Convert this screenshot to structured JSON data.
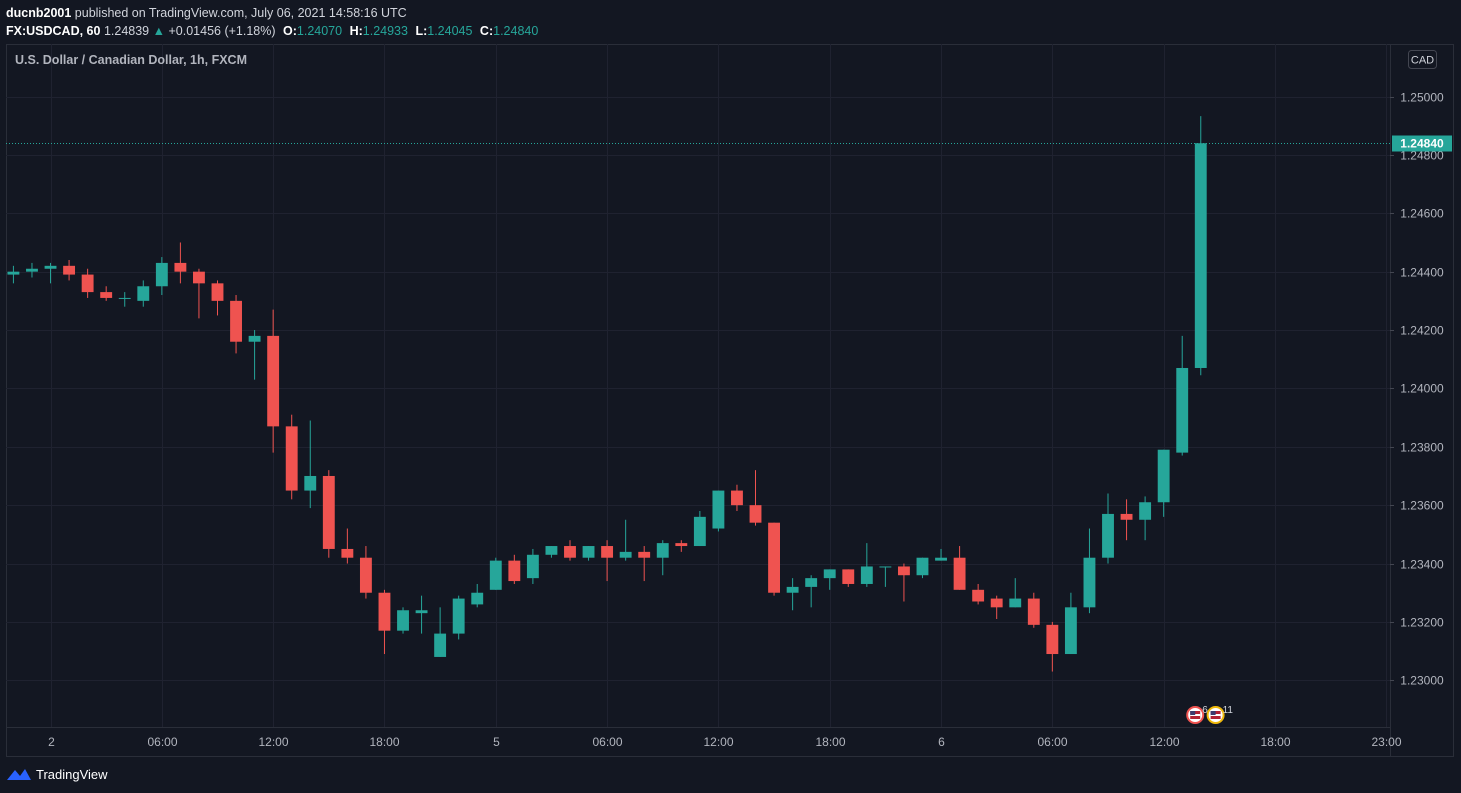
{
  "header": {
    "author": "ducnb2001",
    "published_text": " published on TradingView.com, July 06, 2021 14:58:16 UTC",
    "symbol": "FX:USDCAD, 60",
    "last": "1.24839",
    "arrow": "▲",
    "change": "+0.01456 (+1.18%)",
    "o_label": "O:",
    "o": "1.24070",
    "h_label": "H:",
    "h": "1.24933",
    "l_label": "L:",
    "l": "1.24045",
    "c_label": "C:",
    "c": "1.24840"
  },
  "footer": {
    "brand": "TradingView",
    "logo": "tradingview-logo-icon"
  },
  "colors": {
    "background": "#131722",
    "grid": "#1f2230",
    "up": "#26a69a",
    "down": "#ef5350",
    "text": "#d1d4dc",
    "axis_text": "#b2b5be",
    "price_line": "#26a69a"
  },
  "chart_data": {
    "type": "candlestick",
    "title": "U.S. Dollar / Canadian Dollar, 1h, FXCM",
    "currency_label": "CAD",
    "ylim": [
      1.2284,
      1.2518
    ],
    "yticks": [
      "1.23000",
      "1.23200",
      "1.23400",
      "1.23600",
      "1.23800",
      "1.24000",
      "1.24200",
      "1.24400",
      "1.24600",
      "1.24800",
      "1.25000"
    ],
    "last_price": 1.2484,
    "last_price_label": "1.24840",
    "x_index_range": [
      -0.4,
      74.2
    ],
    "xticks": [
      {
        "index": 2,
        "label": "2"
      },
      {
        "index": 8,
        "label": "06:00"
      },
      {
        "index": 14,
        "label": "12:00"
      },
      {
        "index": 20,
        "label": "18:00"
      },
      {
        "index": 26,
        "label": "5"
      },
      {
        "index": 32,
        "label": "06:00"
      },
      {
        "index": 38,
        "label": "12:00"
      },
      {
        "index": 44,
        "label": "18:00"
      },
      {
        "index": 50,
        "label": "6"
      },
      {
        "index": 56,
        "label": "06:00"
      },
      {
        "index": 62,
        "label": "12:00"
      },
      {
        "index": 68,
        "label": "18:00"
      },
      {
        "index": 74,
        "label": "23:00"
      }
    ],
    "grid": true,
    "events": [
      {
        "index": 63.7,
        "icon": "us-flag-icon",
        "count": "6"
      },
      {
        "index": 64.8,
        "icon": "us-flag-icon",
        "count": "11"
      }
    ],
    "candles": [
      {
        "o": 1.2439,
        "h": 1.2442,
        "l": 1.2436,
        "c": 1.244
      },
      {
        "o": 1.244,
        "h": 1.2443,
        "l": 1.2438,
        "c": 1.2441
      },
      {
        "o": 1.2441,
        "h": 1.2443,
        "l": 1.2436,
        "c": 1.2442
      },
      {
        "o": 1.2442,
        "h": 1.2444,
        "l": 1.2437,
        "c": 1.2439
      },
      {
        "o": 1.2439,
        "h": 1.2441,
        "l": 1.2431,
        "c": 1.2433
      },
      {
        "o": 1.2433,
        "h": 1.2435,
        "l": 1.243,
        "c": 1.2431
      },
      {
        "o": 1.2431,
        "h": 1.2433,
        "l": 1.2428,
        "c": 1.2431
      },
      {
        "o": 1.243,
        "h": 1.2437,
        "l": 1.2428,
        "c": 1.2435
      },
      {
        "o": 1.2435,
        "h": 1.2445,
        "l": 1.2432,
        "c": 1.2443
      },
      {
        "o": 1.2443,
        "h": 1.245,
        "l": 1.2436,
        "c": 1.244
      },
      {
        "o": 1.244,
        "h": 1.2441,
        "l": 1.2424,
        "c": 1.2436
      },
      {
        "o": 1.2436,
        "h": 1.2437,
        "l": 1.2425,
        "c": 1.243
      },
      {
        "o": 1.243,
        "h": 1.2432,
        "l": 1.2412,
        "c": 1.2416
      },
      {
        "o": 1.2416,
        "h": 1.242,
        "l": 1.2403,
        "c": 1.2418
      },
      {
        "o": 1.2418,
        "h": 1.2427,
        "l": 1.2378,
        "c": 1.2387
      },
      {
        "o": 1.2387,
        "h": 1.2391,
        "l": 1.2362,
        "c": 1.2365
      },
      {
        "o": 1.2365,
        "h": 1.2389,
        "l": 1.2359,
        "c": 1.237
      },
      {
        "o": 1.237,
        "h": 1.2372,
        "l": 1.2342,
        "c": 1.2345
      },
      {
        "o": 1.2345,
        "h": 1.2352,
        "l": 1.234,
        "c": 1.2342
      },
      {
        "o": 1.2342,
        "h": 1.2346,
        "l": 1.2328,
        "c": 1.233
      },
      {
        "o": 1.233,
        "h": 1.2331,
        "l": 1.2309,
        "c": 1.2317
      },
      {
        "o": 1.2317,
        "h": 1.2325,
        "l": 1.2316,
        "c": 1.2324
      },
      {
        "o": 1.2323,
        "h": 1.2329,
        "l": 1.2316,
        "c": 1.2324
      },
      {
        "o": 1.2308,
        "h": 1.2325,
        "l": 1.2308,
        "c": 1.2316
      },
      {
        "o": 1.2316,
        "h": 1.2329,
        "l": 1.2314,
        "c": 1.2328
      },
      {
        "o": 1.2326,
        "h": 1.2333,
        "l": 1.2325,
        "c": 1.233
      },
      {
        "o": 1.2331,
        "h": 1.2342,
        "l": 1.2331,
        "c": 1.2341
      },
      {
        "o": 1.2341,
        "h": 1.2343,
        "l": 1.2333,
        "c": 1.2334
      },
      {
        "o": 1.2335,
        "h": 1.2345,
        "l": 1.2333,
        "c": 1.2343
      },
      {
        "o": 1.2343,
        "h": 1.2346,
        "l": 1.2342,
        "c": 1.2346
      },
      {
        "o": 1.2346,
        "h": 1.2348,
        "l": 1.2341,
        "c": 1.2342
      },
      {
        "o": 1.2342,
        "h": 1.2346,
        "l": 1.2341,
        "c": 1.2346
      },
      {
        "o": 1.2346,
        "h": 1.2348,
        "l": 1.2334,
        "c": 1.2342
      },
      {
        "o": 1.2342,
        "h": 1.2355,
        "l": 1.2341,
        "c": 1.2344
      },
      {
        "o": 1.2344,
        "h": 1.2346,
        "l": 1.2334,
        "c": 1.2342
      },
      {
        "o": 1.2342,
        "h": 1.2348,
        "l": 1.2336,
        "c": 1.2347
      },
      {
        "o": 1.2347,
        "h": 1.2348,
        "l": 1.2344,
        "c": 1.2346
      },
      {
        "o": 1.2346,
        "h": 1.2358,
        "l": 1.2346,
        "c": 1.2356
      },
      {
        "o": 1.2352,
        "h": 1.2365,
        "l": 1.2351,
        "c": 1.2365
      },
      {
        "o": 1.2365,
        "h": 1.2367,
        "l": 1.2358,
        "c": 1.236
      },
      {
        "o": 1.236,
        "h": 1.2372,
        "l": 1.2353,
        "c": 1.2354
      },
      {
        "o": 1.2354,
        "h": 1.2354,
        "l": 1.2329,
        "c": 1.233
      },
      {
        "o": 1.233,
        "h": 1.2335,
        "l": 1.2324,
        "c": 1.2332
      },
      {
        "o": 1.2332,
        "h": 1.2336,
        "l": 1.2325,
        "c": 1.2335
      },
      {
        "o": 1.2335,
        "h": 1.2338,
        "l": 1.2331,
        "c": 1.2338
      },
      {
        "o": 1.2338,
        "h": 1.2338,
        "l": 1.2332,
        "c": 1.2333
      },
      {
        "o": 1.2333,
        "h": 1.2347,
        "l": 1.2332,
        "c": 1.2339
      },
      {
        "o": 1.2339,
        "h": 1.2339,
        "l": 1.2332,
        "c": 1.2339
      },
      {
        "o": 1.2339,
        "h": 1.234,
        "l": 1.2327,
        "c": 1.2336
      },
      {
        "o": 1.2336,
        "h": 1.2342,
        "l": 1.2335,
        "c": 1.2342
      },
      {
        "o": 1.2341,
        "h": 1.2345,
        "l": 1.2341,
        "c": 1.2342
      },
      {
        "o": 1.2342,
        "h": 1.2346,
        "l": 1.2331,
        "c": 1.2331
      },
      {
        "o": 1.2331,
        "h": 1.2333,
        "l": 1.2326,
        "c": 1.2327
      },
      {
        "o": 1.2328,
        "h": 1.2329,
        "l": 1.2321,
        "c": 1.2325
      },
      {
        "o": 1.2325,
        "h": 1.2335,
        "l": 1.2325,
        "c": 1.2328
      },
      {
        "o": 1.2328,
        "h": 1.233,
        "l": 1.2318,
        "c": 1.2319
      },
      {
        "o": 1.2319,
        "h": 1.232,
        "l": 1.2303,
        "c": 1.2309
      },
      {
        "o": 1.2309,
        "h": 1.233,
        "l": 1.2309,
        "c": 1.2325
      },
      {
        "o": 1.2325,
        "h": 1.2352,
        "l": 1.2323,
        "c": 1.2342
      },
      {
        "o": 1.2342,
        "h": 1.2364,
        "l": 1.234,
        "c": 1.2357
      },
      {
        "o": 1.2357,
        "h": 1.2362,
        "l": 1.2348,
        "c": 1.2355
      },
      {
        "o": 1.2355,
        "h": 1.2363,
        "l": 1.2348,
        "c": 1.2361
      },
      {
        "o": 1.2361,
        "h": 1.2379,
        "l": 1.2356,
        "c": 1.2379
      },
      {
        "o": 1.2378,
        "h": 1.2418,
        "l": 1.2377,
        "c": 1.2407
      },
      {
        "o": 1.2407,
        "h": 1.24933,
        "l": 1.24045,
        "c": 1.2484
      }
    ]
  }
}
